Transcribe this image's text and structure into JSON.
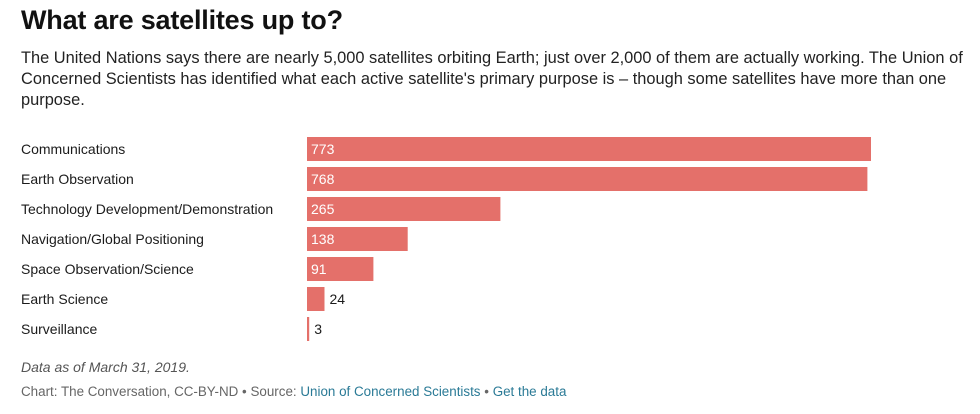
{
  "title": "What are satellites up to?",
  "subtitle": "The United Nations says there are nearly 5,000 satellites orbiting Earth; just over 2,000 of them are actually working. The Union of Concerned Scientists has identified what each active satellite's primary purpose is – though some satellites have more than one purpose.",
  "note": "Data as of March 31, 2019.",
  "credits": {
    "prefix": "Chart: The Conversation, CC-BY-ND",
    "sep1": "•",
    "source_label": "Source:",
    "source_link": "Union of Concerned Scientists",
    "sep2": "•",
    "data_link": "Get the data"
  },
  "colors": {
    "bar": "#e4706a",
    "label_inside": "#ffffff",
    "label_outside": "#1b1b1b",
    "link": "#2a7a96"
  },
  "chart_data": {
    "type": "bar",
    "orientation": "horizontal",
    "title": "What are satellites up to?",
    "xlabel": "",
    "ylabel": "",
    "categories": [
      "Communications",
      "Earth Observation",
      "Technology Development/Demonstration",
      "Navigation/Global Positioning",
      "Space Observation/Science",
      "Earth Science",
      "Surveillance"
    ],
    "values": [
      773,
      768,
      265,
      138,
      91,
      24,
      3
    ],
    "xlim": [
      0,
      773
    ],
    "grid": false,
    "legend": "none"
  }
}
